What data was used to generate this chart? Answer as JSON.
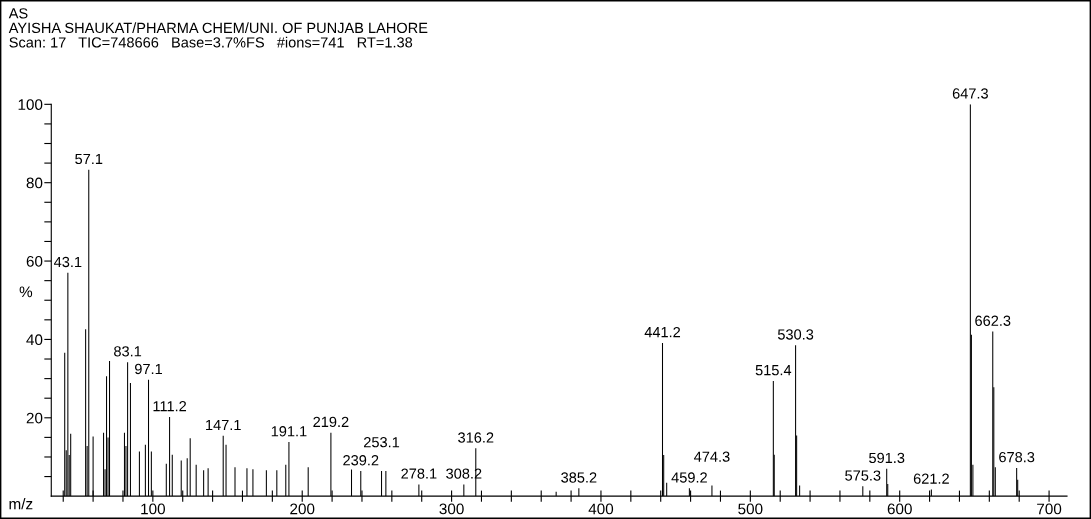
{
  "chart_data": {
    "type": "bar",
    "title": "AS",
    "subtitle": "AYISHA SHAUKAT/PHARMA CHEM/UNI. OF PUNJAB LAHORE",
    "xlabel": "m/z",
    "ylabel": "%",
    "x": [
      41,
      42,
      43.1,
      44,
      45,
      55,
      56,
      57.1,
      60,
      67,
      68,
      69,
      70,
      71,
      81,
      82,
      83.1,
      85,
      91,
      95,
      97.1,
      99,
      109,
      111.2,
      113,
      119,
      123,
      125,
      129,
      134,
      137,
      147.1,
      149,
      155,
      163,
      167,
      176,
      183,
      189,
      191.1,
      204,
      219.2,
      233,
      239.2,
      253.1,
      256,
      278.1,
      308.2,
      316.2,
      370,
      385.2,
      441.2,
      442,
      444,
      459.2,
      474.3,
      515.4,
      516,
      530.3,
      531,
      533,
      575.3,
      591.3,
      592,
      621.2,
      647.3,
      648,
      649,
      662.3,
      663,
      664,
      678.3,
      679
    ],
    "series": [
      {
        "color": "#000000",
        "values": [
          36.6,
          11.7,
          57.0,
          10.5,
          15.9,
          42.6,
          12.8,
          83.3,
          15.2,
          16.2,
          6.9,
          30.6,
          15.0,
          34.5,
          16.2,
          12.8,
          34.2,
          28.9,
          11.4,
          13.1,
          29.7,
          11.4,
          8.3,
          20.2,
          10.6,
          9.1,
          9.7,
          14.8,
          8.0,
          6.6,
          7.1,
          15.4,
          13.1,
          7.4,
          7.1,
          6.9,
          6.6,
          6.6,
          8.0,
          13.8,
          7.4,
          16.2,
          6.8,
          6.4,
          6.4,
          6.4,
          3.0,
          3.0,
          12.2,
          1.1,
          2.0,
          39.1,
          10.5,
          3.4,
          2.0,
          2.7,
          29.4,
          10.6,
          38.5,
          15.5,
          2.7,
          2.5,
          7.0,
          3.1,
          1.7,
          100,
          41.2,
          8.0,
          42.0,
          27.8,
          7.4,
          7.2,
          4.2
        ]
      }
    ],
    "xlim": [
      32,
      712
    ],
    "ylim": [
      0,
      100
    ],
    "xticks": [
      {
        "value": 40,
        "label": null
      },
      {
        "value": 60,
        "label": null
      },
      {
        "value": 80,
        "label": null
      },
      100,
      {
        "value": 120,
        "label": null
      },
      {
        "value": 140,
        "label": null
      },
      {
        "value": 160,
        "label": null
      },
      {
        "value": 180,
        "label": null
      },
      200,
      {
        "value": 220,
        "label": null
      },
      {
        "value": 240,
        "label": null
      },
      {
        "value": 260,
        "label": null
      },
      {
        "value": 280,
        "label": null
      },
      300,
      {
        "value": 320,
        "label": null
      },
      {
        "value": 340,
        "label": null
      },
      {
        "value": 360,
        "label": null
      },
      {
        "value": 380,
        "label": null
      },
      400,
      {
        "value": 420,
        "label": null
      },
      {
        "value": 440,
        "label": null
      },
      {
        "value": 460,
        "label": null
      },
      {
        "value": 480,
        "label": null
      },
      500,
      {
        "value": 520,
        "label": null
      },
      {
        "value": 540,
        "label": null
      },
      {
        "value": 560,
        "label": null
      },
      {
        "value": 580,
        "label": null
      },
      600,
      {
        "value": 620,
        "label": null
      },
      {
        "value": 640,
        "label": null
      },
      {
        "value": 660,
        "label": null
      },
      {
        "value": 680,
        "label": null
      },
      700
    ],
    "yticks": [
      {
        "value": 5,
        "label": null
      },
      {
        "value": 10,
        "label": null
      },
      {
        "value": 15,
        "label": null
      },
      20,
      {
        "value": 25,
        "label": null
      },
      {
        "value": 30,
        "label": null
      },
      {
        "value": 35,
        "label": null
      },
      40,
      {
        "value": 45,
        "label": null
      },
      {
        "value": 50,
        "label": null
      },
      {
        "value": 55,
        "label": null
      },
      60,
      {
        "value": 65,
        "label": null
      },
      {
        "value": 70,
        "label": null
      },
      {
        "value": 75,
        "label": null
      },
      80,
      {
        "value": 85,
        "label": null
      },
      {
        "value": 90,
        "label": null
      },
      {
        "value": 95,
        "label": null
      },
      100
    ],
    "grid": false,
    "legend": false,
    "annotations": [
      "Scan: 17   TIC=748666   Base=3.7%FS   #ions=741   RT=1.38",
      {
        "text": "43.1",
        "x": 43.1,
        "y": 57.0
      },
      {
        "text": "57.1",
        "x": 57.1,
        "y": 83.3
      },
      {
        "text": "83.1",
        "x": 83.1,
        "y": 34.2
      },
      {
        "text": "97.1",
        "x": 97.1,
        "y": 29.7
      },
      {
        "text": "111.2",
        "x": 111.2,
        "y": 20.2
      },
      {
        "text": "147.1",
        "x": 147.1,
        "y": 15.4
      },
      {
        "text": "191.1",
        "x": 191.1,
        "y": 13.8
      },
      {
        "text": "219.2",
        "x": 219.2,
        "y": 16.2
      },
      {
        "text": "239.2",
        "x": 239.2,
        "y": 6.4
      },
      {
        "text": "253.1",
        "x": 253.1,
        "y": 6.4
      },
      {
        "text": "278.1",
        "x": 278.1,
        "y": 3.0
      },
      {
        "text": "308.2",
        "x": 308.2,
        "y": 3.0
      },
      {
        "text": "316.2",
        "x": 316.2,
        "y": 12.2
      },
      {
        "text": "385.2",
        "x": 385.2,
        "y": 2.0
      },
      {
        "text": "441.2",
        "x": 441.2,
        "y": 39.1
      },
      {
        "text": "459.2",
        "x": 459.2,
        "y": 2.0
      },
      {
        "text": "474.3",
        "x": 474.3,
        "y": 2.7
      },
      {
        "text": "515.4",
        "x": 515.4,
        "y": 29.4
      },
      {
        "text": "530.3",
        "x": 530.3,
        "y": 38.5
      },
      {
        "text": "575.3",
        "x": 575.3,
        "y": 2.5
      },
      {
        "text": "591.3",
        "x": 591.3,
        "y": 7.0
      },
      {
        "text": "621.2",
        "x": 621.2,
        "y": 1.7
      },
      {
        "text": "647.3",
        "x": 647.3,
        "y": 100
      },
      {
        "text": "662.3",
        "x": 662.3,
        "y": 42.0
      },
      {
        "text": "678.3",
        "x": 678.3,
        "y": 7.2
      }
    ]
  }
}
